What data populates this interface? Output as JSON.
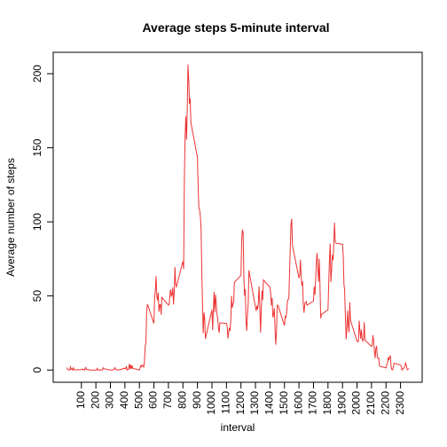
{
  "chart_data": {
    "type": "line",
    "title": "Average steps 5-minute interval",
    "x_label": "interval",
    "y_label": "Average number of steps",
    "x": [
      0,
      5,
      10,
      15,
      20,
      25,
      30,
      35,
      40,
      45,
      50,
      55,
      100,
      105,
      110,
      115,
      120,
      125,
      130,
      135,
      140,
      145,
      150,
      155,
      200,
      205,
      210,
      215,
      220,
      225,
      230,
      235,
      240,
      245,
      250,
      255,
      300,
      305,
      310,
      315,
      320,
      325,
      330,
      335,
      340,
      345,
      350,
      355,
      400,
      405,
      410,
      415,
      420,
      425,
      430,
      435,
      440,
      445,
      450,
      455,
      500,
      505,
      510,
      515,
      520,
      525,
      530,
      535,
      540,
      545,
      550,
      555,
      600,
      605,
      610,
      615,
      620,
      625,
      630,
      635,
      640,
      645,
      650,
      655,
      700,
      705,
      710,
      715,
      720,
      725,
      730,
      735,
      740,
      745,
      750,
      755,
      800,
      805,
      810,
      815,
      820,
      825,
      830,
      835,
      840,
      845,
      850,
      855,
      900,
      905,
      910,
      915,
      920,
      925,
      930,
      935,
      940,
      945,
      950,
      955,
      1000,
      1005,
      1010,
      1015,
      1020,
      1025,
      1030,
      1035,
      1040,
      1045,
      1050,
      1055,
      1100,
      1105,
      1110,
      1115,
      1120,
      1125,
      1130,
      1135,
      1140,
      1145,
      1150,
      1155,
      1200,
      1205,
      1210,
      1215,
      1220,
      1225,
      1230,
      1235,
      1240,
      1245,
      1250,
      1255,
      1300,
      1305,
      1310,
      1315,
      1320,
      1325,
      1330,
      1335,
      1340,
      1345,
      1350,
      1355,
      1400,
      1405,
      1410,
      1415,
      1420,
      1425,
      1430,
      1435,
      1440,
      1445,
      1450,
      1455,
      1500,
      1505,
      1510,
      1515,
      1520,
      1525,
      1530,
      1535,
      1540,
      1545,
      1550,
      1555,
      1600,
      1605,
      1610,
      1615,
      1620,
      1625,
      1630,
      1635,
      1640,
      1645,
      1650,
      1655,
      1700,
      1705,
      1710,
      1715,
      1720,
      1725,
      1730,
      1735,
      1740,
      1745,
      1750,
      1755,
      1800,
      1805,
      1810,
      1815,
      1820,
      1825,
      1830,
      1835,
      1840,
      1845,
      1850,
      1855,
      1900,
      1905,
      1910,
      1915,
      1920,
      1925,
      1930,
      1935,
      1940,
      1945,
      1950,
      1955,
      2000,
      2005,
      2010,
      2015,
      2020,
      2025,
      2030,
      2035,
      2040,
      2045,
      2050,
      2055,
      2100,
      2105,
      2110,
      2115,
      2120,
      2125,
      2130,
      2135,
      2140,
      2145,
      2150,
      2155,
      2200,
      2205,
      2210,
      2215,
      2220,
      2225,
      2230,
      2235,
      2240,
      2245,
      2250,
      2255,
      2300,
      2305,
      2310,
      2315,
      2320,
      2325,
      2330,
      2335,
      2340,
      2345,
      2350,
      2355
    ],
    "series": [
      {
        "name": "steps",
        "color": "#ee3333",
        "values": [
          1.7,
          0.3,
          0.1,
          0.15,
          0.08,
          2.1,
          0.5,
          0.9,
          0,
          1.5,
          0.3,
          0.1,
          0.3,
          0.7,
          0.15,
          0.3,
          0,
          1.1,
          1.8,
          0.2,
          0.2,
          0.4,
          0.3,
          0,
          0,
          0,
          1.1,
          0,
          0,
          0.1,
          0,
          0.2,
          0,
          0,
          1.5,
          0.9,
          0,
          0,
          0,
          0,
          0.2,
          0.6,
          1.6,
          0.6,
          0.5,
          0.1,
          0,
          0,
          1.2,
          0.9,
          2.6,
          0,
          0.3,
          0.4,
          4.1,
          0.7,
          3.5,
          0.8,
          3.1,
          1.1,
          0,
          1.6,
          3.0,
          2.2,
          3.3,
          3.0,
          2.1,
          6.1,
          16.0,
          18.3,
          39.5,
          44.5,
          31.5,
          49.3,
          53.8,
          63.5,
          50.0,
          47.1,
          52.2,
          39.3,
          44.0,
          44.2,
          37.4,
          49.0,
          43.8,
          44.4,
          50.5,
          54.5,
          49.9,
          50.9,
          55.7,
          44.3,
          52.3,
          69.5,
          57.8,
          56.2,
          73.4,
          68.2,
          129.4,
          157.5,
          171.2,
          155.4,
          177.3,
          206.2,
          195.9,
          179.6,
          183.4,
          167.0,
          143.5,
          124.0,
          109.1,
          108.1,
          103.7,
          96.0,
          66.2,
          45.2,
          24.8,
          38.8,
          35.0,
          21.1,
          40.6,
          27.0,
          42.4,
          52.7,
          38.9,
          50.8,
          44.3,
          37.4,
          34.7,
          28.3,
          25.1,
          31.9,
          31.4,
          29.7,
          21.3,
          25.5,
          28.4,
          26.5,
          33.4,
          50.0,
          42.0,
          44.6,
          46.0,
          59.2,
          63.9,
          87.6,
          94.8,
          92.8,
          63.4,
          50.2,
          54.5,
          32.4,
          26.5,
          37.7,
          45.1,
          67.3,
          42.3,
          39.9,
          43.3,
          41.0,
          46.2,
          56.4,
          42.8,
          25.1,
          40.0,
          53.5,
          47.3,
          60.8,
          55.8,
          51.9,
          43.6,
          48.7,
          35.5,
          37.5,
          41.8,
          27.5,
          17.1,
          26.1,
          43.6,
          43.8,
          30.0,
          36.1,
          35.5,
          38.8,
          46.0,
          47.8,
          48.1,
          65.3,
          82.9,
          98.7,
          102.1,
          84.0,
          62.1,
          64.1,
          74.5,
          63.2,
          56.9,
          59.8,
          43.9,
          38.6,
          44.7,
          45.5,
          46.2,
          43.7,
          46.6,
          56.3,
          50.7,
          61.2,
          73.4,
          79.0,
          68.9,
          59.7,
          75.1,
          56.5,
          34.8,
          37.5,
          40.7,
          58.0,
          74.7,
          85.3,
          59.3,
          67.8,
          77.7,
          74.2,
          85.3,
          99.5,
          86.6,
          85.6,
          84.9,
          77.8,
          58.0,
          53.4,
          36.3,
          20.7,
          27.4,
          40.0,
          30.2,
          25.5,
          45.7,
          33.5,
          19.6,
          19.0,
          19.3,
          33.3,
          26.8,
          21.2,
          27.3,
          21.3,
          19.5,
          21.3,
          32.3,
          20.2,
          15.9,
          17.2,
          23.5,
          19.2,
          12.5,
          8.0,
          14.7,
          16.3,
          8.7,
          7.8,
          8.1,
          2.6,
          1.5,
          3.7,
          4.8,
          8.5,
          7.1,
          8.7,
          9.8,
          2.2,
          0.3,
          0.1,
          1.6,
          4.6,
          3.3,
          2.8,
          0,
          0.8,
          1.0,
          1.6,
          2.6,
          4.7,
          3.3,
          0.6,
          0.2,
          1.1
        ]
      }
    ],
    "xlim": [
      -94.2,
      2449.2
    ],
    "ylim": [
      -8.25,
      214.42
    ],
    "xticks": [
      100,
      200,
      300,
      400,
      500,
      600,
      700,
      800,
      900,
      1000,
      1100,
      1200,
      1300,
      1400,
      1500,
      1600,
      1700,
      1800,
      1900,
      2000,
      2100,
      2200,
      2300
    ],
    "yticks": [
      0,
      50,
      100,
      150,
      200
    ]
  }
}
